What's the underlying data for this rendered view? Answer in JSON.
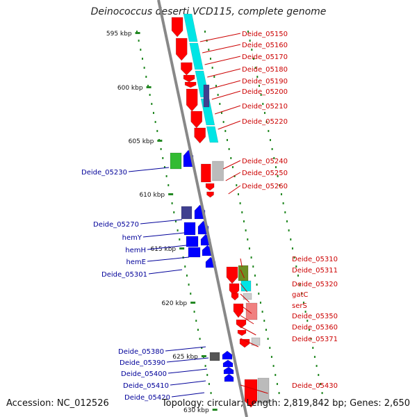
{
  "title": "Deinococcus deserti VCD115, complete genome",
  "footer": {
    "accession": "Accession: NC_012526",
    "topology": "Topology: circular; Length: 2,819,842 bp; Genes: 2,650"
  },
  "ticks": [
    {
      "label": "595 kbp",
      "kbp": 595
    },
    {
      "label": "600 kbp",
      "kbp": 600
    },
    {
      "label": "605 kbp",
      "kbp": 605
    },
    {
      "label": "610 kbp",
      "kbp": 610
    },
    {
      "label": "615 kbp",
      "kbp": 615
    },
    {
      "label": "620 kbp",
      "kbp": 620
    },
    {
      "label": "625 kbp",
      "kbp": 625
    },
    {
      "label": "630 kbp",
      "kbp": 630
    }
  ],
  "labels_right": [
    "Deide_05150",
    "Deide_05160",
    "Deide_05170",
    "Deide_05180",
    "Deide_05190",
    "Deide_05200",
    "Deide_05210",
    "Deide_05220",
    "Deide_05240",
    "Deide_05250",
    "Deide_05260",
    "Deide_05310",
    "Deide_05311",
    "Deide_05320",
    "gatC",
    "serS",
    "Deide_05350",
    "Deide_05360",
    "Deide_05371",
    "Deide_05430"
  ],
  "labels_left": [
    "Deide_05230",
    "Deide_05270",
    "hemY",
    "hemH",
    "hemE",
    "Deide_05301",
    "Deide_05380",
    "Deide_05390",
    "Deide_05400",
    "Deide_05410",
    "Deide_05420"
  ],
  "colors": {
    "forward_label": "#cc0000",
    "reverse_label": "#000099",
    "forward_gene": "#ff0000",
    "reverse_gene": "#0000ff",
    "cyan_feature": "#00e5e5",
    "green_feature": "#33bb33",
    "backbone": "#888888",
    "tick": "#228822"
  }
}
